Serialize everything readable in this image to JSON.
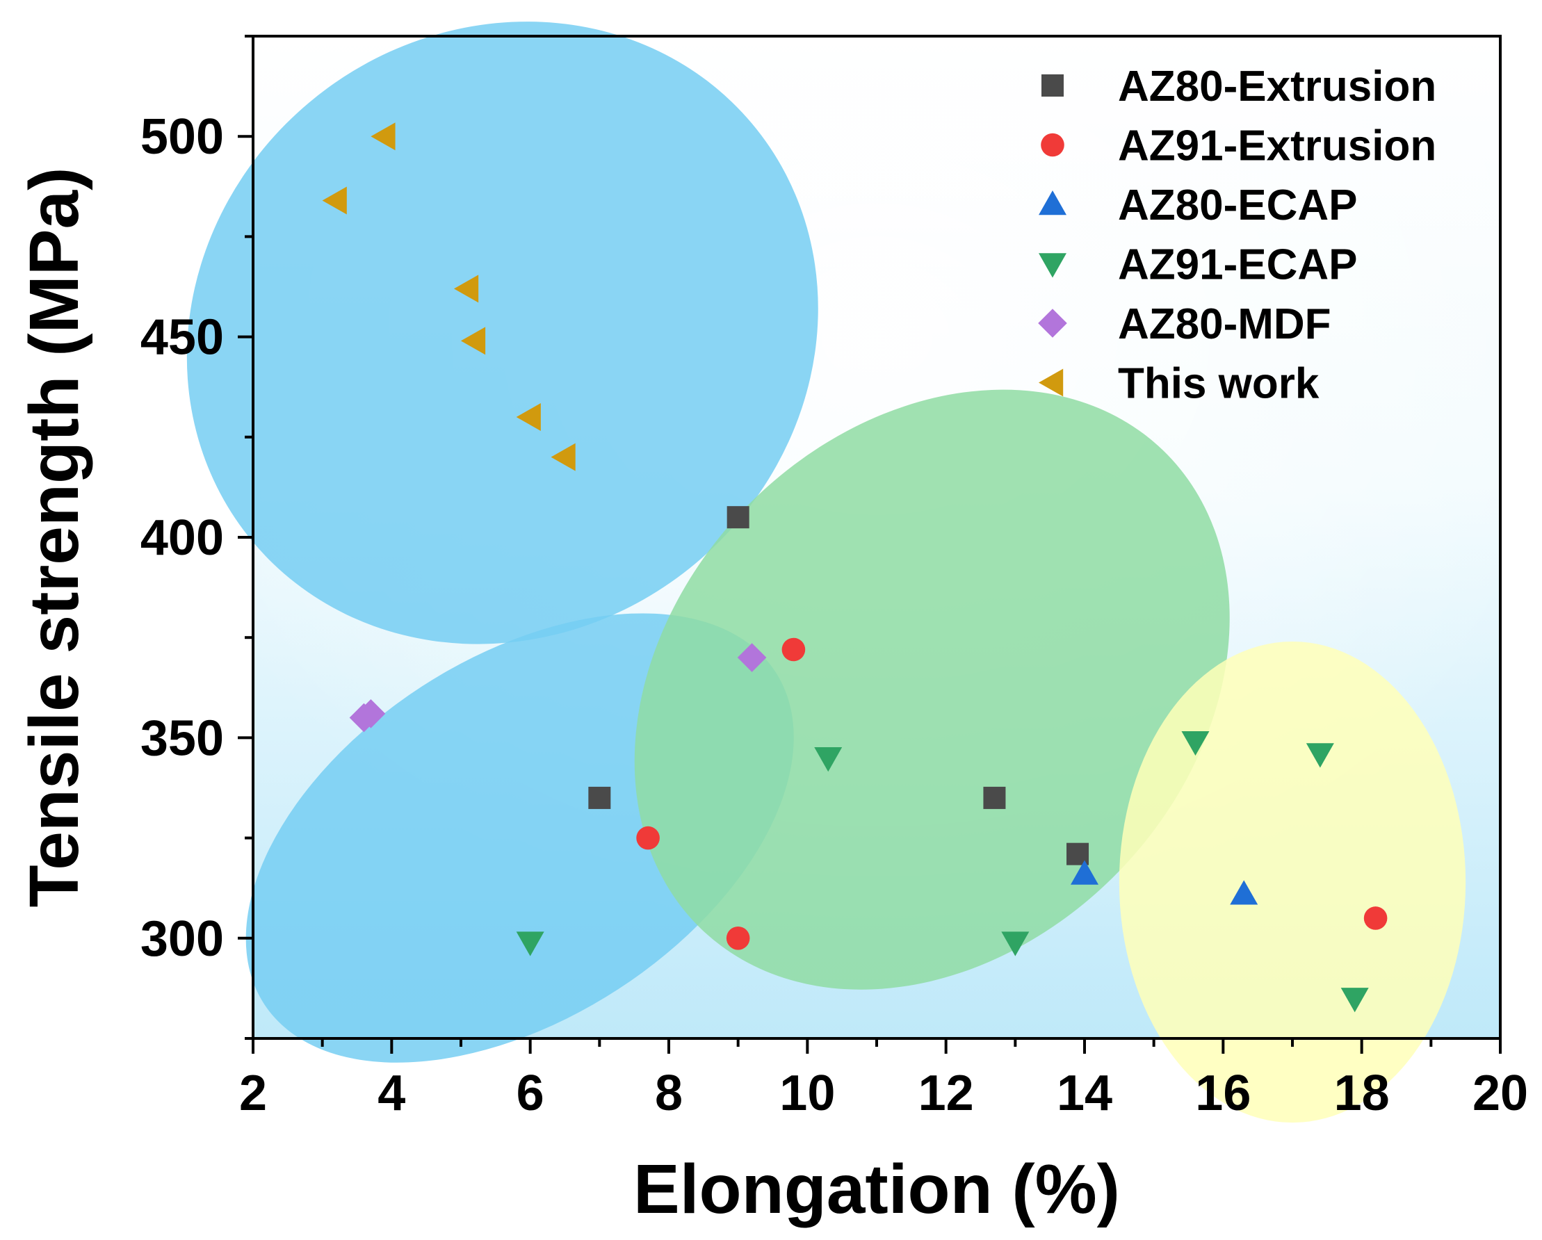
{
  "chart_data": {
    "type": "scatter",
    "title": "",
    "xlabel": "Elongation (%)",
    "ylabel": "Tensile strength (MPa)",
    "xlim": [
      2,
      20
    ],
    "ylim": [
      275,
      525
    ],
    "xticks": [
      2,
      4,
      6,
      8,
      10,
      12,
      14,
      16,
      18,
      20
    ],
    "xtick_labels": [
      "2",
      "4",
      "6",
      "8",
      "10",
      "12",
      "14",
      "16",
      "18",
      "20"
    ],
    "yticks": [
      300,
      350,
      400,
      450,
      500
    ],
    "ytick_labels": [
      "300",
      "350",
      "400",
      "450",
      "500"
    ],
    "grid": false,
    "legend_position": "top-right",
    "regions": [
      {
        "name": "upper-left-group",
        "color": "#76CEF2",
        "center": [
          5.6,
          451
        ],
        "semi_axes_deg": [
          4.7,
          75
        ],
        "rotation_deg": 40
      },
      {
        "name": "lower-left-group",
        "color": "#76CEF2",
        "center": [
          5.85,
          325
        ],
        "semi_axes_deg": [
          4.4,
          45
        ],
        "rotation_deg": 33
      },
      {
        "name": "middle-group",
        "color": "#8FDCA3",
        "center": [
          11.8,
          362
        ],
        "semi_axes_deg": [
          4.8,
          65
        ],
        "rotation_deg": 46
      },
      {
        "name": "right-group",
        "color": "#FFFFB8",
        "center": [
          17.0,
          314
        ],
        "semi_axes_deg": [
          2.5,
          60
        ],
        "rotation_deg": 0
      }
    ],
    "series": [
      {
        "name": "AZ80-Extrusion",
        "marker": "square",
        "color": "#4A4A4A",
        "points": [
          [
            9.0,
            405
          ],
          [
            7.0,
            335
          ],
          [
            12.7,
            335
          ],
          [
            13.9,
            321
          ]
        ]
      },
      {
        "name": "AZ91-Extrusion",
        "marker": "circle",
        "color": "#F03A38",
        "points": [
          [
            9.8,
            372
          ],
          [
            7.7,
            325
          ],
          [
            9.0,
            300
          ],
          [
            18.2,
            305
          ]
        ]
      },
      {
        "name": "AZ80-ECAP",
        "marker": "triangle-up",
        "color": "#1F6FD6",
        "points": [
          [
            14.0,
            316
          ],
          [
            16.3,
            311
          ]
        ]
      },
      {
        "name": "AZ91-ECAP",
        "marker": "triangle-down",
        "color": "#2FA463",
        "points": [
          [
            6.0,
            299
          ],
          [
            10.3,
            345
          ],
          [
            13.0,
            299
          ],
          [
            15.6,
            349
          ],
          [
            17.4,
            346
          ],
          [
            17.9,
            285
          ]
        ]
      },
      {
        "name": "AZ80-MDF",
        "marker": "diamond",
        "color": "#B275DB",
        "points": [
          [
            3.6,
            355
          ],
          [
            3.7,
            356
          ],
          [
            9.2,
            370
          ]
        ]
      },
      {
        "name": "This work",
        "marker": "triangle-left",
        "color": "#D19A0E",
        "points": [
          [
            3.9,
            500
          ],
          [
            3.2,
            484
          ],
          [
            5.1,
            462
          ],
          [
            5.2,
            449
          ],
          [
            6.0,
            430
          ],
          [
            6.5,
            420
          ]
        ]
      }
    ]
  }
}
